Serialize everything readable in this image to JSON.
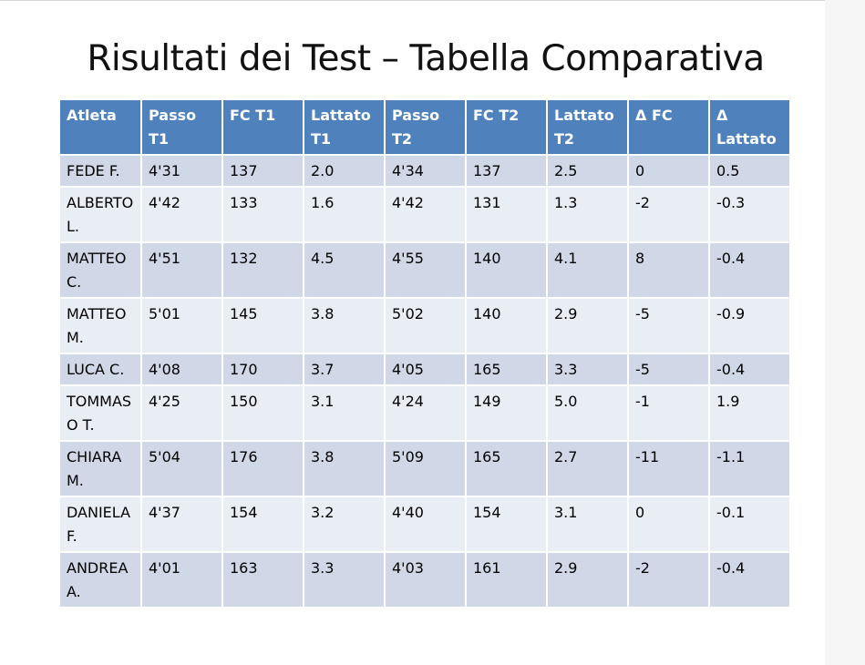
{
  "title": "Risultati dei Test – Tabella Comparativa",
  "table": {
    "headers": [
      "Atleta",
      "Passo T1",
      "FC T1",
      "Lattato T1",
      "Passo T2",
      "FC T2",
      "Lattato T2",
      "Δ FC",
      "Δ Lattato"
    ],
    "rows": [
      [
        "FEDE F.",
        "4'31",
        "137",
        "2.0",
        "4'34",
        "137",
        "2.5",
        "0",
        "0.5"
      ],
      [
        "ALBERTO L.",
        "4'42",
        "133",
        "1.6",
        "4'42",
        "131",
        "1.3",
        "-2",
        "-0.3"
      ],
      [
        "MATTEO C.",
        "4'51",
        "132",
        "4.5",
        "4'55",
        "140",
        "4.1",
        "8",
        "-0.4"
      ],
      [
        "MATTEO M.",
        "5'01",
        "145",
        "3.8",
        "5'02",
        "140",
        "2.9",
        "-5",
        "-0.9"
      ],
      [
        "LUCA C.",
        "4'08",
        "170",
        "3.7",
        "4'05",
        "165",
        "3.3",
        "-5",
        "-0.4"
      ],
      [
        "TOMMASO T.",
        "4'25",
        "150",
        "3.1",
        "4'24",
        "149",
        "5.0",
        "-1",
        "1.9"
      ],
      [
        "CHIARA M.",
        "5'04",
        "176",
        "3.8",
        "5'09",
        "165",
        "2.7",
        "-11",
        "-1.1"
      ],
      [
        "DANIELA F.",
        "4'37",
        "154",
        "3.2",
        "4'40",
        "154",
        "3.1",
        "0",
        "-0.1"
      ],
      [
        "ANDREA A.",
        "4'01",
        "163",
        "3.3",
        "4'03",
        "161",
        "2.9",
        "-2",
        "-0.4"
      ]
    ]
  }
}
